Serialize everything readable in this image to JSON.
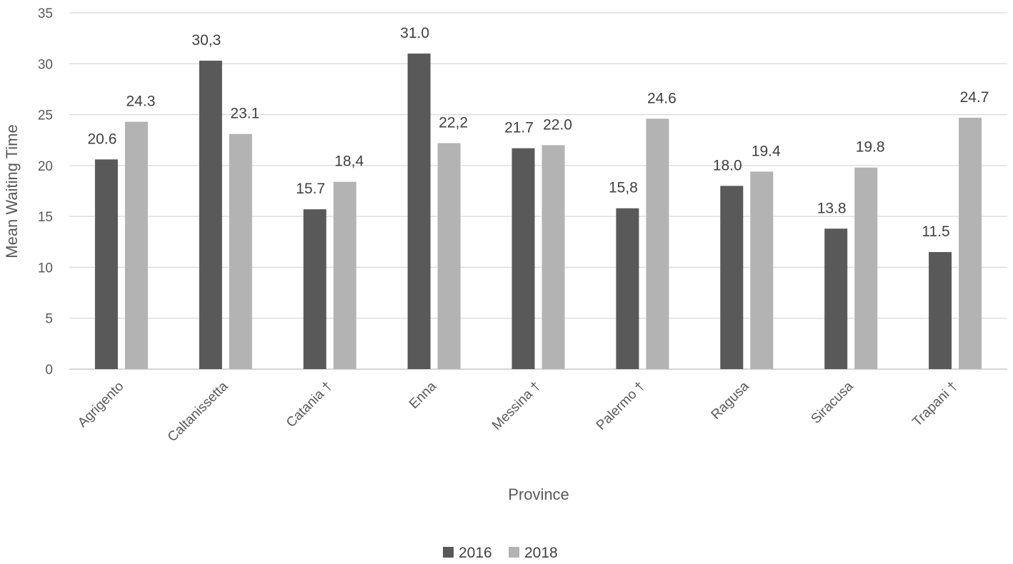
{
  "chart_data": {
    "type": "bar",
    "xlabel": "Province",
    "ylabel": "Mean Waiting Time",
    "ylim": [
      0,
      35
    ],
    "yticks": [
      0,
      5,
      10,
      15,
      20,
      25,
      30,
      35
    ],
    "grid": true,
    "legend_position": "bottom",
    "categories": [
      "Agrigento",
      "Caltanissetta",
      "Catania †",
      "Enna",
      "Messina †",
      "Palermo †",
      "Ragusa",
      "Siracusa",
      "Trapani †"
    ],
    "series": [
      {
        "name": "2016",
        "color": "#595959",
        "values": [
          20.6,
          30.3,
          15.7,
          31.0,
          21.7,
          15.8,
          18.0,
          13.8,
          11.5
        ],
        "labels": [
          "20.6",
          "30,3",
          "15.7",
          "31.0",
          "21.7",
          "15,8",
          "18.0",
          "13.8",
          "11.5"
        ]
      },
      {
        "name": "2018",
        "color": "#b3b3b3",
        "values": [
          24.3,
          23.1,
          18.4,
          22.2,
          22.0,
          24.6,
          19.4,
          19.8,
          24.7
        ],
        "labels": [
          "24.3",
          "23.1",
          "18,4",
          "22,2",
          "22.0",
          "24.6",
          "19.4",
          "19.8",
          "24.7"
        ]
      }
    ]
  }
}
